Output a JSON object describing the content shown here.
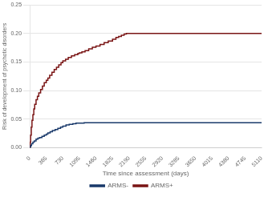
{
  "chart_data": {
    "type": "step",
    "xlabel": "Time since assessment (days)",
    "ylabel": "Risk of development of psychotic disorders",
    "xlim": [
      0,
      5110
    ],
    "ylim": [
      0,
      0.25
    ],
    "xticks": [
      0,
      365,
      730,
      1095,
      1460,
      1825,
      2190,
      2555,
      2920,
      3285,
      3650,
      4015,
      4380,
      4745,
      5110
    ],
    "yticks": [
      {
        "value": 0,
        "label": "0.00"
      },
      0.05,
      {
        "value": 0.1,
        "label": "0.10"
      },
      0.15,
      {
        "value": 0.2,
        "label": "0.20"
      },
      0.25
    ],
    "grid": "y",
    "legend": "bottom",
    "series": [
      {
        "name": "ARMS-",
        "color": "#1a3a6b",
        "x": [
          0,
          20,
          40,
          70,
          100,
          140,
          180,
          220,
          270,
          320,
          365,
          400,
          450,
          500,
          560,
          620,
          680,
          730,
          800,
          870,
          950,
          1020,
          1095,
          1200,
          1350,
          1460,
          1600,
          1825,
          2190,
          2555,
          2920,
          3285,
          3650,
          4015,
          4380,
          4745,
          5110
        ],
        "values": [
          0.0,
          0.004,
          0.007,
          0.01,
          0.012,
          0.015,
          0.017,
          0.018,
          0.02,
          0.022,
          0.024,
          0.026,
          0.028,
          0.03,
          0.032,
          0.034,
          0.036,
          0.038,
          0.04,
          0.041,
          0.042,
          0.043,
          0.043,
          0.044,
          0.044,
          0.044,
          0.044,
          0.044,
          0.044,
          0.044,
          0.044,
          0.044,
          0.044,
          0.044,
          0.044,
          0.044,
          0.044
        ]
      },
      {
        "name": "ARMS+",
        "color": "#7a1515",
        "x": [
          0,
          10,
          20,
          35,
          50,
          70,
          90,
          110,
          140,
          170,
          200,
          240,
          280,
          320,
          365,
          400,
          440,
          490,
          540,
          590,
          640,
          690,
          730,
          790,
          850,
          920,
          990,
          1060,
          1095,
          1150,
          1220,
          1300,
          1380,
          1460,
          1550,
          1640,
          1730,
          1825,
          1900,
          1960,
          2020,
          2080,
          2130,
          2190,
          2555,
          2920,
          3285,
          3650,
          4015,
          4380,
          4745,
          5110
        ],
        "values": [
          0.0,
          0.01,
          0.022,
          0.036,
          0.048,
          0.058,
          0.068,
          0.076,
          0.084,
          0.09,
          0.096,
          0.102,
          0.108,
          0.114,
          0.118,
          0.122,
          0.127,
          0.132,
          0.137,
          0.141,
          0.145,
          0.149,
          0.152,
          0.155,
          0.158,
          0.161,
          0.163,
          0.165,
          0.166,
          0.168,
          0.17,
          0.173,
          0.176,
          0.178,
          0.181,
          0.184,
          0.187,
          0.19,
          0.193,
          0.195,
          0.197,
          0.199,
          0.2,
          0.2,
          0.2,
          0.2,
          0.2,
          0.2,
          0.2,
          0.2,
          0.2,
          0.2
        ]
      }
    ]
  }
}
